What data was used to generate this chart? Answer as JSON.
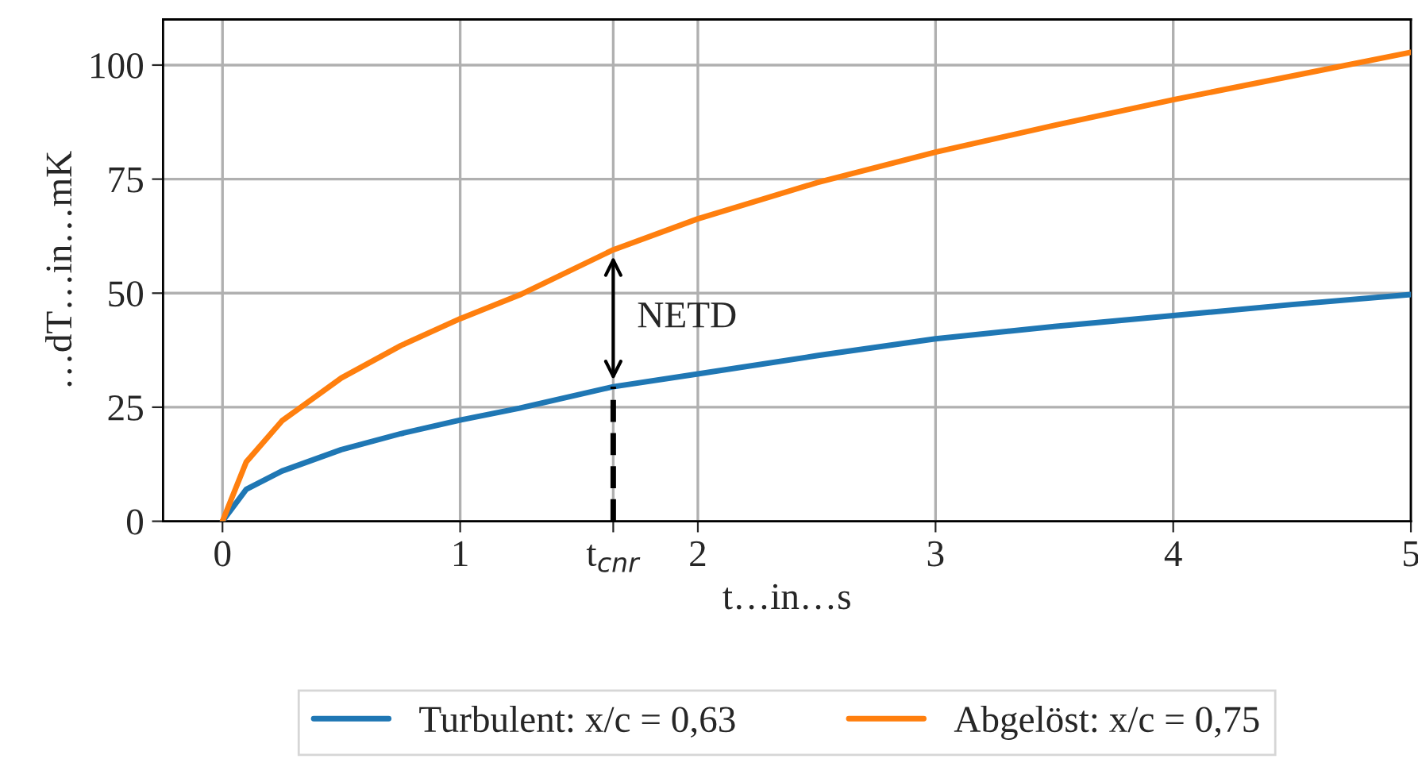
{
  "chart_data": {
    "type": "line",
    "xlabel": "t…in…s",
    "ylabel": "…dT…in…mK",
    "xlim": [
      -0.25,
      5
    ],
    "ylim": [
      0,
      110
    ],
    "xticks": [
      0,
      1,
      {
        "value": 1.644,
        "label": "t$_{cnr}$"
      },
      2,
      3,
      4,
      5
    ],
    "yticks": [
      0,
      25,
      50,
      75,
      100
    ],
    "grid": true,
    "legend": "bottom",
    "marker": "none",
    "line_style": "solid",
    "series": [
      {
        "name": "Turbulent: x/c = 0,63",
        "color": "#1f77b4",
        "x": [
          0,
          0.1,
          0.25,
          0.5,
          0.75,
          1,
          1.25,
          1.644,
          2,
          2.5,
          3,
          3.5,
          4,
          4.5,
          5
        ],
        "values": [
          0,
          7,
          11,
          15.7,
          19.2,
          22.2,
          24.8,
          29.5,
          32.3,
          36.3,
          40,
          42.7,
          45.1,
          47.5,
          49.7
        ]
      },
      {
        "name": "Abgelöst: x/c = 0,75",
        "color": "#ff7f0e",
        "x": [
          0,
          0.1,
          0.25,
          0.5,
          0.75,
          1,
          1.25,
          1.644,
          2,
          2.5,
          3,
          3.5,
          4,
          4.5,
          5
        ],
        "values": [
          0,
          13,
          22,
          31.4,
          38.5,
          44.4,
          49.6,
          59.5,
          66.3,
          74.2,
          80.9,
          86.8,
          92.4,
          97.6,
          102.8
        ]
      },
      {
        "type": "line",
        "color": "#000000",
        "line_style": "dashed",
        "x": [
          1.644,
          1.644
        ],
        "values": [
          0,
          29.5
        ]
      }
    ],
    "annotations": [
      "NETD"
    ]
  }
}
